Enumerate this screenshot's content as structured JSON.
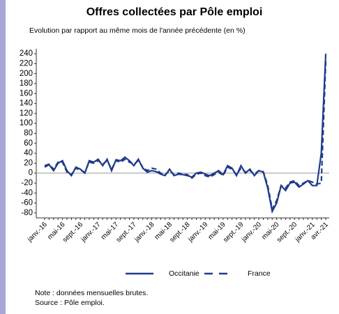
{
  "chart_data": {
    "type": "line",
    "title": "Offres collectées par Pôle emploi",
    "subtitle": "Evolution par rapport au même mois de l'année précédente (en %)",
    "categories": [
      "janv.-16",
      null,
      null,
      null,
      "mai-16",
      null,
      null,
      null,
      "sept.-16",
      null,
      null,
      null,
      "janv.-17",
      null,
      null,
      null,
      "mai-17",
      null,
      null,
      null,
      "sept.-17",
      null,
      null,
      null,
      "janv.-18",
      null,
      null,
      null,
      "mai-18",
      null,
      null,
      null,
      "sept.-18",
      null,
      null,
      null,
      "janv.-19",
      null,
      null,
      null,
      "mai-19",
      null,
      null,
      null,
      "sept.-19",
      null,
      null,
      null,
      "janv.-20",
      null,
      null,
      null,
      "mai-20",
      null,
      null,
      null,
      "sept.-20",
      null,
      null,
      null,
      "janv.-21",
      null,
      null,
      "avr.-21"
    ],
    "series": [
      {
        "name": "Occitanie",
        "color": "#1f3a8a",
        "dash": false,
        "values": [
          12,
          17,
          5,
          20,
          25,
          5,
          -5,
          12,
          8,
          0,
          25,
          22,
          28,
          15,
          28,
          5,
          27,
          25,
          32,
          25,
          15,
          28,
          10,
          2,
          5,
          3,
          -2,
          -5,
          8,
          -5,
          -2,
          -3,
          -5,
          -8,
          0,
          2,
          -2,
          -5,
          0,
          5,
          -3,
          15,
          10,
          -5,
          15,
          0,
          8,
          -5,
          5,
          2,
          -30,
          -77,
          -60,
          -25,
          -35,
          -20,
          -18,
          -28,
          -22,
          -15,
          -25,
          -25,
          40,
          240
        ]
      },
      {
        "name": "France",
        "color": "#1f3a8a",
        "dash": true,
        "values": [
          15,
          18,
          8,
          22,
          22,
          2,
          -3,
          10,
          6,
          2,
          22,
          20,
          25,
          18,
          25,
          8,
          25,
          22,
          28,
          22,
          18,
          25,
          12,
          5,
          10,
          8,
          0,
          -3,
          5,
          -3,
          0,
          -2,
          -3,
          -10,
          -2,
          0,
          -5,
          -8,
          -3,
          2,
          -5,
          12,
          8,
          -3,
          10,
          2,
          5,
          -2,
          5,
          3,
          -25,
          -72,
          -55,
          -25,
          -30,
          -18,
          -15,
          -25,
          -20,
          -15,
          -18,
          -22,
          -20,
          225
        ]
      }
    ],
    "ylim": [
      -90,
      250
    ],
    "yticks": [
      -80,
      -60,
      -40,
      -20,
      0,
      20,
      40,
      60,
      80,
      100,
      120,
      140,
      160,
      180,
      200,
      220,
      240
    ],
    "zero_line": true,
    "legend": "bottom",
    "note": "Note : données mensuelles brutes.",
    "source": "Source : Pôle emploi."
  }
}
